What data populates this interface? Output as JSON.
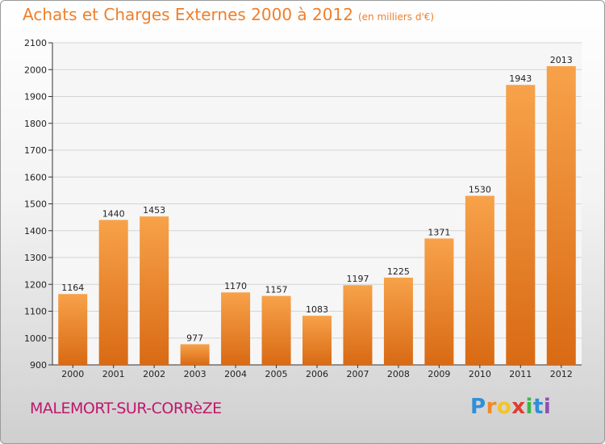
{
  "header": {
    "title": "Achats et Charges Externes 2000 à 2012",
    "unit": "(en milliers d'€)"
  },
  "footer": {
    "town": "MALEMORT-SUR-CORRèZE"
  },
  "logo": {
    "letters": [
      "P",
      "r",
      "o",
      "x",
      "i",
      "t",
      "i"
    ],
    "colors": [
      "#2f8fd8",
      "#f08a24",
      "#f6c324",
      "#e23b2e",
      "#3db54a",
      "#2f8fd8",
      "#8e4fb4"
    ]
  },
  "chart_data": {
    "type": "bar",
    "categories": [
      "2000",
      "2001",
      "2002",
      "2003",
      "2004",
      "2005",
      "2006",
      "2007",
      "2008",
      "2009",
      "2010",
      "2011",
      "2012"
    ],
    "values": [
      1164,
      1440,
      1453,
      977,
      1170,
      1157,
      1083,
      1197,
      1225,
      1371,
      1530,
      1943,
      2013
    ],
    "title": "Achats et Charges Externes 2000 à 2012",
    "xlabel": "",
    "ylabel": "",
    "ylim": [
      900,
      2100
    ],
    "yticks": [
      900,
      1000,
      1100,
      1200,
      1300,
      1400,
      1500,
      1600,
      1700,
      1800,
      1900,
      2000,
      2100
    ],
    "grid": true,
    "bar_color": "#f0882f"
  }
}
